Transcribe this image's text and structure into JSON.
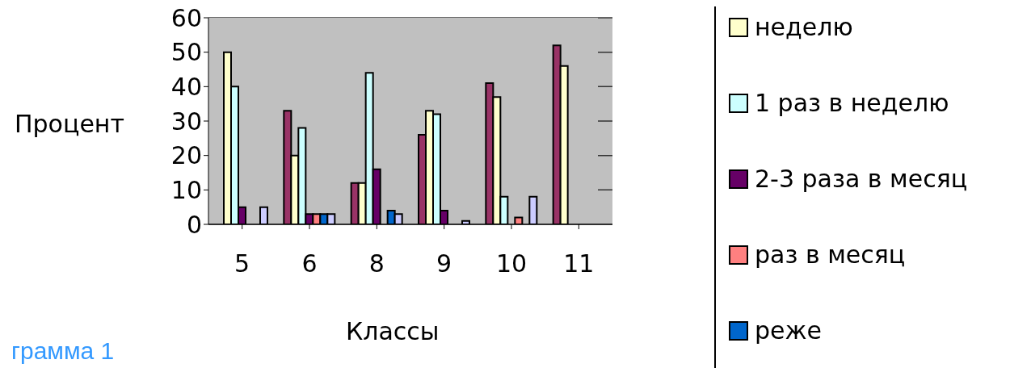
{
  "chart_data": {
    "type": "bar",
    "xlabel": "Классы",
    "ylabel": "Процент",
    "annotations": [
      "грамма 1"
    ],
    "categories": [
      "5",
      "6",
      "8",
      "9",
      "10",
      "11"
    ],
    "series": [
      {
        "color": "#993366",
        "values": [
          0,
          33,
          12,
          26,
          41,
          52
        ]
      },
      {
        "name": "неделю",
        "color": "#ffffcc",
        "values": [
          50,
          20,
          12,
          33,
          37,
          46
        ]
      },
      {
        "name": "1 раз в неделю",
        "color": "#ccffff",
        "values": [
          40,
          28,
          44,
          32,
          8,
          0
        ]
      },
      {
        "name": "2-3 раза в месяц",
        "color": "#660066",
        "values": [
          5,
          3,
          16,
          4,
          0,
          0
        ]
      },
      {
        "name": "раз в месяц",
        "color": "#ff8080",
        "values": [
          0,
          3,
          0,
          0,
          2,
          0
        ]
      },
      {
        "name": "реже",
        "color": "#0066cc",
        "values": [
          0,
          3,
          4,
          0,
          0,
          0
        ]
      },
      {
        "color": "#ccccff",
        "values": [
          5,
          3,
          3,
          1,
          8,
          0
        ]
      }
    ],
    "ylim": [
      0,
      60
    ],
    "yticks": [
      0,
      10,
      20,
      30,
      40,
      50,
      60
    ],
    "grid": "y",
    "legend": "right"
  }
}
